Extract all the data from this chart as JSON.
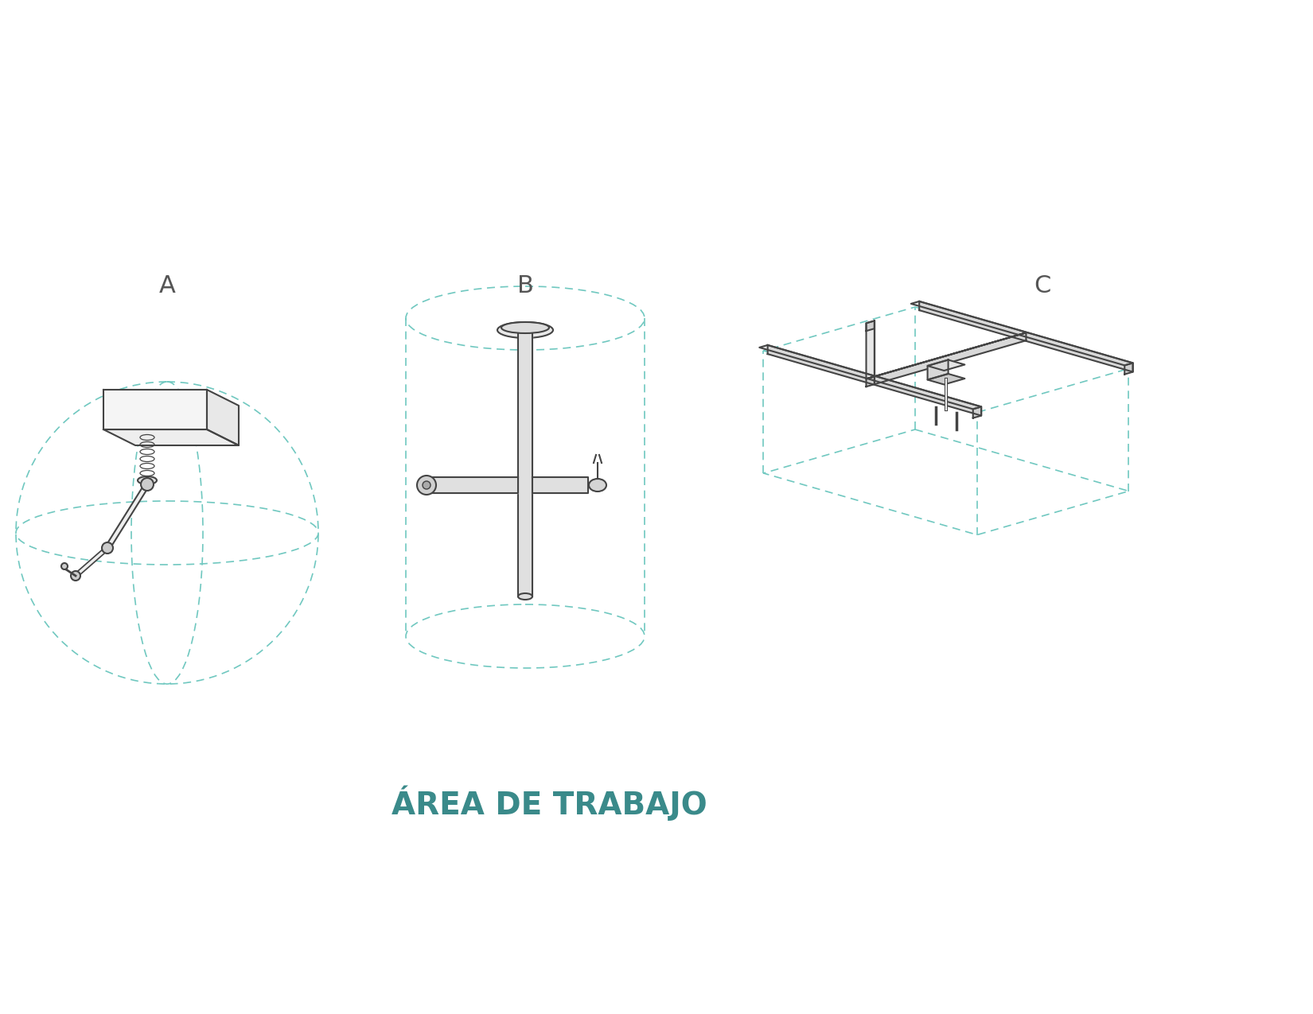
{
  "title": "ÁREA DE TRABAJO",
  "title_color": "#3a8a8a",
  "title_fontsize": 28,
  "bg_color": "#ffffff",
  "label_A": "A",
  "label_B": "B",
  "label_C": "C",
  "label_fontsize": 22,
  "label_color": "#555555",
  "dashed_color": "#70c8c0",
  "robot_color": "#444444",
  "robot_lw": 1.5
}
